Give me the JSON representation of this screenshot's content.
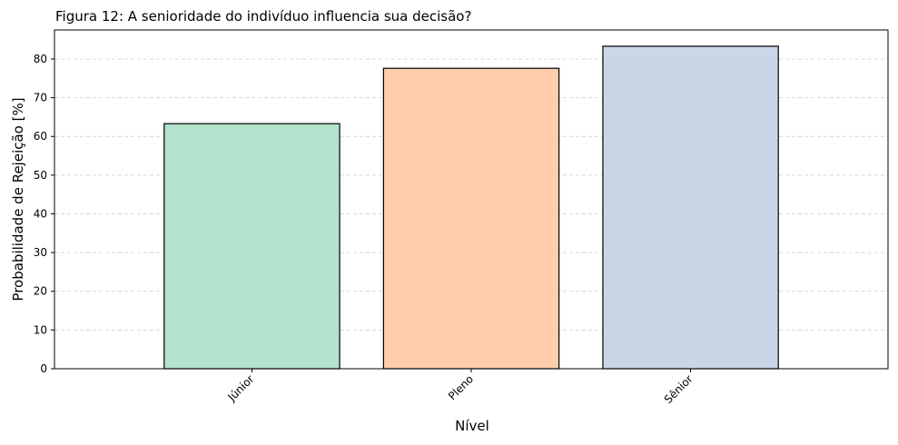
{
  "chart_data": {
    "type": "bar",
    "title": "Figura 12: A senioridade do indivíduo influencia sua decisão?",
    "xlabel": "Nível",
    "ylabel": "Probabilidade de Rejeição [%]",
    "categories": [
      "Júnior",
      "Pleno",
      "Sênior"
    ],
    "values": [
      63.3,
      77.6,
      83.3
    ],
    "colors": [
      "#b3e2cd",
      "#fdcdac",
      "#cbd5e8"
    ],
    "edge_color": "#000000",
    "ylim": [
      0,
      87.5
    ],
    "yticks": [
      0,
      10,
      20,
      30,
      40,
      50,
      60,
      70,
      80
    ],
    "grid": "y-dashed",
    "legend": "none"
  }
}
